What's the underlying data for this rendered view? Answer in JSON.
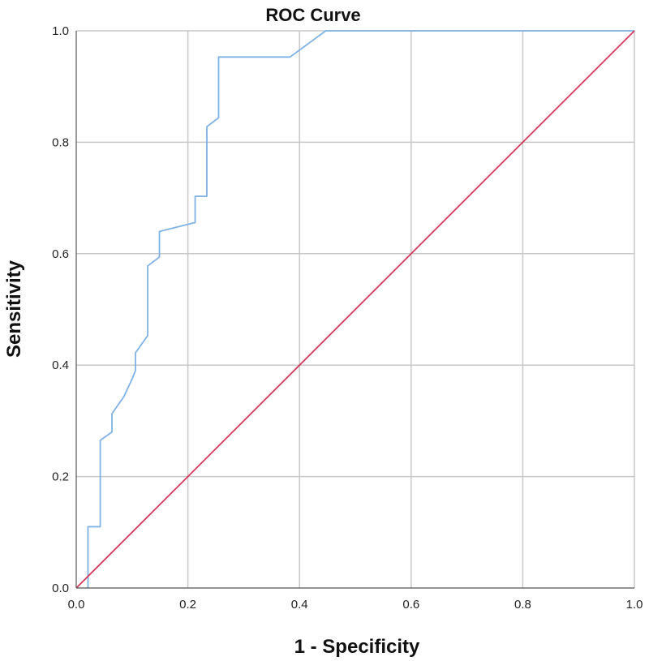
{
  "chart_data": {
    "type": "line",
    "title": "ROC Curve",
    "xlabel": "1 - Specificity",
    "ylabel": "Sensitivity",
    "xlim": [
      0,
      1
    ],
    "ylim": [
      0,
      1
    ],
    "xticks": [
      "0.0",
      "0.2",
      "0.4",
      "0.6",
      "0.8",
      "1.0"
    ],
    "yticks": [
      "0.0",
      "0.2",
      "0.4",
      "0.6",
      "0.8",
      "1.0"
    ],
    "grid": true,
    "legend": "none",
    "series": [
      {
        "color": "#7fb2e5",
        "x": [
          0.021,
          0.021,
          0.043,
          0.043,
          0.064,
          0.064,
          0.085,
          0.1,
          0.106,
          0.106,
          0.128,
          0.128,
          0.149,
          0.149,
          0.213,
          0.213,
          0.234,
          0.234,
          0.255,
          0.255,
          0.383,
          0.447,
          1.0
        ],
        "y": [
          0.0,
          0.11,
          0.11,
          0.265,
          0.28,
          0.313,
          0.343,
          0.375,
          0.39,
          0.422,
          0.453,
          0.578,
          0.594,
          0.64,
          0.656,
          0.703,
          0.703,
          0.828,
          0.844,
          0.953,
          0.953,
          1.0,
          1.0
        ]
      },
      {
        "color": "#d6395a",
        "x": [
          0,
          1
        ],
        "y": [
          0,
          1
        ]
      }
    ]
  }
}
